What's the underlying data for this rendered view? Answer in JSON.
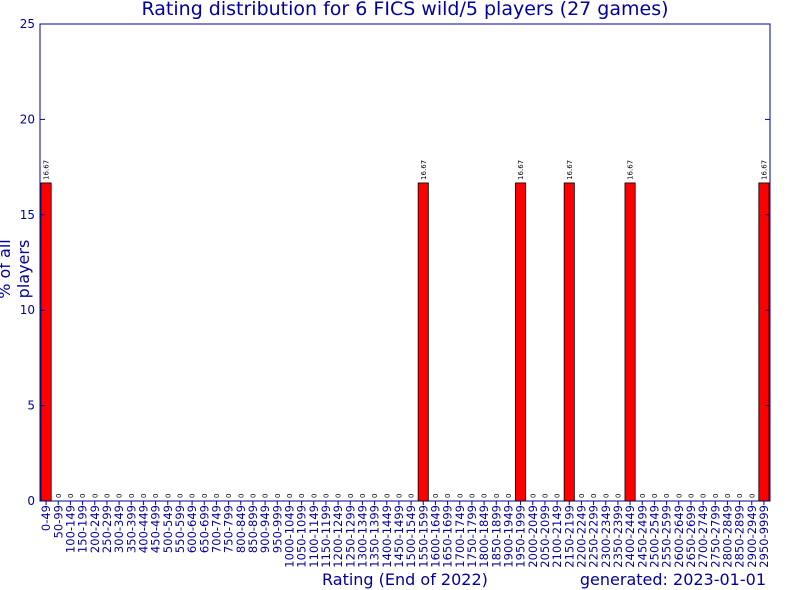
{
  "chart_data": {
    "type": "bar",
    "title": "Rating distribution for 6 FICS wild/5 players (27 games)",
    "xlabel": "Rating (End of 2022)",
    "ylabel": "% of all players",
    "generated": "generated: 2023-01-01",
    "ylim": [
      0,
      25
    ],
    "yticks": [
      0,
      5,
      10,
      15,
      20,
      25
    ],
    "categories": [
      "0-49",
      "50-99",
      "100-149",
      "150-199",
      "200-249",
      "250-299",
      "300-349",
      "350-399",
      "400-449",
      "450-499",
      "500-549",
      "550-599",
      "600-649",
      "650-699",
      "700-749",
      "750-799",
      "800-849",
      "850-899",
      "900-949",
      "950-999",
      "1000-1049",
      "1050-1099",
      "1100-1149",
      "1150-1199",
      "1200-1249",
      "1250-1299",
      "1300-1349",
      "1350-1399",
      "1400-1449",
      "1450-1499",
      "1500-1549",
      "1550-1599",
      "1600-1649",
      "1650-1699",
      "1700-1749",
      "1750-1799",
      "1800-1849",
      "1850-1899",
      "1900-1949",
      "1950-1999",
      "2000-2049",
      "2050-2099",
      "2100-2149",
      "2150-2199",
      "2200-2249",
      "2250-2299",
      "2300-2349",
      "2350-2399",
      "2400-2449",
      "2450-2499",
      "2500-2549",
      "2550-2599",
      "2600-2649",
      "2650-2699",
      "2700-2749",
      "2750-2799",
      "2800-2849",
      "2850-2899",
      "2900-2949",
      "2950-9999"
    ],
    "values": [
      16.67,
      0,
      0,
      0,
      0,
      0,
      0,
      0,
      0,
      0,
      0,
      0,
      0,
      0,
      0,
      0,
      0,
      0,
      0,
      0,
      0,
      0,
      0,
      0,
      0,
      0,
      0,
      0,
      0,
      0,
      0,
      16.67,
      0,
      0,
      0,
      0,
      0,
      0,
      0,
      16.67,
      0,
      0,
      0,
      16.67,
      0,
      0,
      0,
      0,
      16.67,
      0,
      0,
      0,
      0,
      0,
      0,
      0,
      0,
      0,
      0,
      16.67
    ],
    "data_labels": [
      "16.67",
      "0",
      "0",
      "0",
      "0",
      "0",
      "0",
      "0",
      "0",
      "0",
      "0",
      "0",
      "0",
      "0",
      "0",
      "0",
      "0",
      "0",
      "0",
      "0",
      "0",
      "0",
      "0",
      "0",
      "0",
      "0",
      "0",
      "0",
      "0",
      "0",
      "0",
      "16.67",
      "0",
      "0",
      "0",
      "0",
      "0",
      "0",
      "0",
      "16.67",
      "0",
      "0",
      "0",
      "16.67",
      "0",
      "0",
      "0",
      "0",
      "16.67",
      "0",
      "0",
      "0",
      "0",
      "0",
      "0",
      "0",
      "0",
      "0",
      "0",
      "16.67"
    ],
    "grid": false,
    "colors": {
      "bar": "#ff0000",
      "bar_edge": "#000000",
      "axis": "#0000a0",
      "text": "#0000a0"
    }
  }
}
